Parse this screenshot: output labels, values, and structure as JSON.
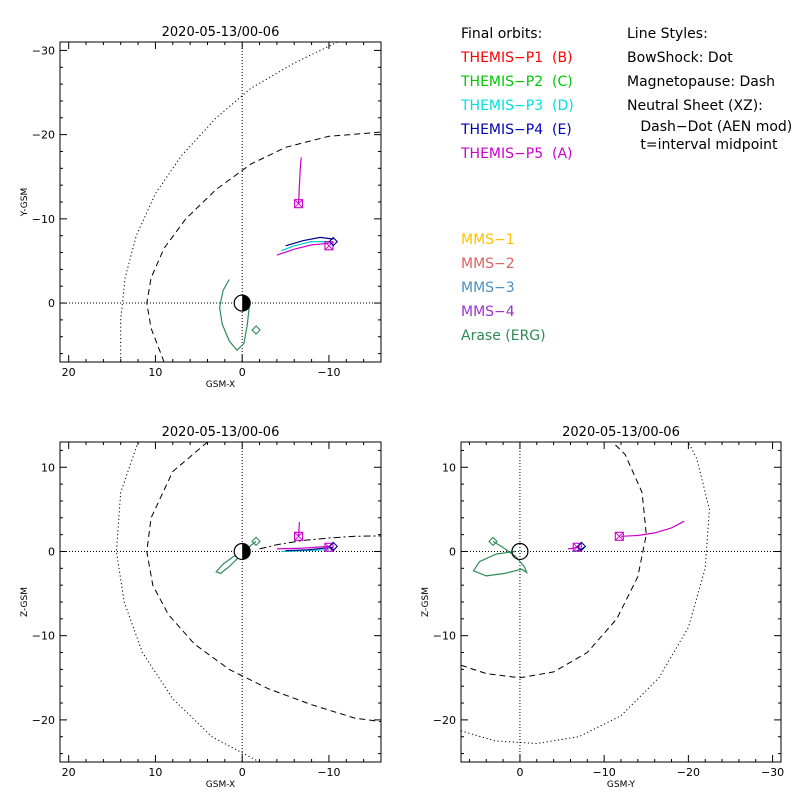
{
  "chart_data": [
    {
      "type": "line",
      "id": "xy",
      "title": "2020-05-13/00-06",
      "xlabel": "GSM-X",
      "ylabel": "Y-GSM",
      "xlim": [
        21,
        -16
      ],
      "ylim": [
        7,
        -31
      ],
      "xticks": [
        20,
        10,
        0,
        -10
      ],
      "xtick_labels": [
        "20",
        "10",
        "0",
        "−10"
      ],
      "yticks": [
        -30,
        -20,
        -10,
        0
      ],
      "ytick_labels": [
        "−30",
        "−20",
        "−10",
        "0"
      ],
      "grid": false,
      "series": [
        {
          "color": "#000000",
          "style": "dotted",
          "points": [
            [
              14,
              7
            ],
            [
              14,
              2
            ],
            [
              13.5,
              -3
            ],
            [
              12.2,
              -8
            ],
            [
              10,
              -13
            ],
            [
              7,
              -17.5
            ],
            [
              3,
              -22
            ],
            [
              -1,
              -25.5
            ],
            [
              -6,
              -28.5
            ],
            [
              -11,
              -31
            ]
          ]
        },
        {
          "color": "#000000",
          "style": "dashed",
          "points": [
            [
              9,
              7
            ],
            [
              10.5,
              3
            ],
            [
              11,
              0
            ],
            [
              10.5,
              -3
            ],
            [
              9,
              -6.5
            ],
            [
              6.5,
              -10
            ],
            [
              3,
              -13.5
            ],
            [
              -1,
              -16.5
            ],
            [
              -5,
              -18.5
            ],
            [
              -10,
              -19.8
            ],
            [
              -16,
              -20.3
            ]
          ]
        },
        {
          "color": "#cc00cc",
          "style": "solid",
          "points": [
            [
              -6.5,
              -11.8
            ],
            [
              -6.6,
              -14
            ],
            [
              -6.7,
              -16
            ],
            [
              -6.8,
              -17.3
            ]
          ]
        },
        {
          "color": "#00cccc",
          "style": "solid",
          "points": [
            [
              -4.5,
              -6.2
            ],
            [
              -6,
              -6.8
            ],
            [
              -8,
              -7.3
            ],
            [
              -10,
              -7.3
            ]
          ]
        },
        {
          "color": "#00008b",
          "style": "solid",
          "points": [
            [
              -5,
              -6.8
            ],
            [
              -7,
              -7.4
            ],
            [
              -9,
              -7.8
            ],
            [
              -10.5,
              -7.6
            ]
          ]
        },
        {
          "color": "#cc00cc",
          "style": "solid",
          "points": [
            [
              -4,
              -5.7
            ],
            [
              -6,
              -6.4
            ],
            [
              -8,
              -6.9
            ],
            [
              -10,
              -7.1
            ]
          ]
        },
        {
          "color": "#2e8b57",
          "style": "solid",
          "points": [
            [
              1.5,
              -2.8
            ],
            [
              2.2,
              -1.5
            ],
            [
              2.6,
              0.5
            ],
            [
              2.3,
              2.5
            ],
            [
              1.5,
              4.5
            ],
            [
              0.6,
              5.6
            ],
            [
              -0.2,
              4.8
            ],
            [
              -0.6,
              2.5
            ],
            [
              -0.8,
              0.5
            ],
            [
              -0.6,
              -0.4
            ],
            [
              0,
              -0.6
            ],
            [
              0.5,
              0.1
            ]
          ]
        }
      ],
      "markers": [
        {
          "shape": "square-x",
          "x": -6.5,
          "y": -11.8,
          "color": "#cc00cc"
        },
        {
          "shape": "square-x",
          "x": -10,
          "y": -6.8,
          "color": "#cc00cc"
        },
        {
          "shape": "diamond",
          "x": -10.5,
          "y": -7.3,
          "color": "#00008b"
        },
        {
          "shape": "diamond",
          "x": -1.6,
          "y": 3.2,
          "color": "#2e8b57"
        },
        {
          "shape": "earth",
          "x": 0,
          "y": 0
        }
      ]
    },
    {
      "type": "line",
      "id": "xz",
      "title": "2020-05-13/00-06",
      "xlabel": "GSM-X",
      "ylabel": "Z-GSM",
      "xlim": [
        21,
        -16
      ],
      "ylim": [
        -25,
        13
      ],
      "xticks": [
        20,
        10,
        0,
        -10
      ],
      "xtick_labels": [
        "20",
        "10",
        "0",
        "−10"
      ],
      "yticks": [
        10,
        0,
        -10,
        -20
      ],
      "ytick_labels": [
        "10",
        "0",
        "−10",
        "−20"
      ],
      "grid": false,
      "series": [
        {
          "color": "#000000",
          "style": "dotted",
          "points": [
            [
              12,
              13
            ],
            [
              14,
              7
            ],
            [
              14.5,
              0
            ],
            [
              13.6,
              -6
            ],
            [
              11.5,
              -12
            ],
            [
              8,
              -17.5
            ],
            [
              3.5,
              -22
            ],
            [
              -2,
              -25
            ]
          ]
        },
        {
          "color": "#000000",
          "style": "dashed",
          "points": [
            [
              4,
              13
            ],
            [
              8,
              9.5
            ],
            [
              10.5,
              4
            ],
            [
              11,
              0
            ],
            [
              10.3,
              -4
            ],
            [
              8.5,
              -7.5
            ],
            [
              5.5,
              -11
            ],
            [
              1.5,
              -14
            ],
            [
              -3,
              -16.3
            ],
            [
              -8,
              -18.2
            ],
            [
              -13,
              -19.8
            ],
            [
              -16,
              -20.2
            ]
          ]
        },
        {
          "color": "#000000",
          "style": "dashdot",
          "points": [
            [
              -2,
              0.3
            ],
            [
              -4,
              0.8
            ],
            [
              -7,
              1.3
            ],
            [
              -10,
              1.6
            ],
            [
              -13,
              1.8
            ],
            [
              -16,
              1.85
            ]
          ]
        },
        {
          "color": "#cc00cc",
          "style": "solid",
          "points": [
            [
              -6.5,
              1.8
            ],
            [
              -6.6,
              3.5
            ]
          ]
        },
        {
          "color": "#00cccc",
          "style": "solid",
          "points": [
            [
              -4.5,
              0
            ],
            [
              -7,
              0.1
            ],
            [
              -10,
              0.2
            ]
          ]
        },
        {
          "color": "#00008b",
          "style": "solid",
          "points": [
            [
              -5,
              0.1
            ],
            [
              -7.5,
              0.2
            ],
            [
              -10.5,
              0.5
            ]
          ]
        },
        {
          "color": "#cc00cc",
          "style": "solid",
          "points": [
            [
              -4,
              0.3
            ],
            [
              -7,
              0.4
            ],
            [
              -10,
              0.6
            ]
          ]
        },
        {
          "color": "#2e8b57",
          "style": "solid",
          "points": [
            [
              -1.6,
              1.2
            ],
            [
              -0.5,
              0.3
            ],
            [
              0.5,
              -0.8
            ],
            [
              1.5,
              -1.8
            ],
            [
              2.5,
              -2.6
            ],
            [
              3,
              -2.4
            ],
            [
              2.2,
              -1.5
            ],
            [
              1,
              -0.6
            ],
            [
              0,
              -0.1
            ]
          ]
        }
      ],
      "markers": [
        {
          "shape": "square-x",
          "x": -6.5,
          "y": 1.8,
          "color": "#cc00cc"
        },
        {
          "shape": "square-x",
          "x": -10,
          "y": 0.5,
          "color": "#cc00cc"
        },
        {
          "shape": "diamond",
          "x": -10.5,
          "y": 0.6,
          "color": "#00008b"
        },
        {
          "shape": "diamond",
          "x": -1.6,
          "y": 1.2,
          "color": "#2e8b57"
        },
        {
          "shape": "earth",
          "x": 0,
          "y": 0
        }
      ]
    },
    {
      "type": "line",
      "id": "yz",
      "title": "2020-05-13/00-06",
      "xlabel": "GSM-Y",
      "ylabel": "Z-GSM",
      "xlim": [
        7,
        -31
      ],
      "ylim": [
        -25,
        13
      ],
      "xticks": [
        0,
        -10,
        -20,
        -30
      ],
      "xtick_labels": [
        "0",
        "−10",
        "−20",
        "−30"
      ],
      "yticks": [
        10,
        0,
        -10,
        -20
      ],
      "ytick_labels": [
        "10",
        "0",
        "−10",
        "−20"
      ],
      "grid": false,
      "series": [
        {
          "color": "#000000",
          "style": "dotted",
          "points": [
            [
              7,
              -21.3
            ],
            [
              3,
              -22.5
            ],
            [
              -2,
              -22.8
            ],
            [
              -7,
              -22
            ],
            [
              -12,
              -19.5
            ],
            [
              -16.5,
              -15
            ],
            [
              -20,
              -9
            ],
            [
              -22,
              -2
            ],
            [
              -22.5,
              5
            ],
            [
              -21,
              11
            ],
            [
              -20,
              13
            ]
          ]
        },
        {
          "color": "#000000",
          "style": "dashed",
          "points": [
            [
              7,
              -13.5
            ],
            [
              4,
              -14.5
            ],
            [
              0,
              -15
            ],
            [
              -4,
              -14.3
            ],
            [
              -8,
              -12
            ],
            [
              -11.5,
              -8
            ],
            [
              -14,
              -3
            ],
            [
              -15,
              2
            ],
            [
              -14.5,
              7
            ],
            [
              -12.5,
              11.5
            ],
            [
              -11,
              13
            ]
          ]
        },
        {
          "color": "#cc00cc",
          "style": "solid",
          "points": [
            [
              -12,
              1.8
            ],
            [
              -14,
              1.9
            ],
            [
              -16,
              2.2
            ],
            [
              -18,
              2.8
            ],
            [
              -19.5,
              3.6
            ]
          ]
        },
        {
          "color": "#00cccc",
          "style": "solid",
          "points": [
            [
              -6.2,
              0
            ],
            [
              -6.8,
              0.1
            ],
            [
              -7.3,
              0.2
            ]
          ]
        },
        {
          "color": "#00008b",
          "style": "solid",
          "points": [
            [
              -6.8,
              0.1
            ],
            [
              -7.4,
              0.3
            ],
            [
              -7.6,
              0.5
            ]
          ]
        },
        {
          "color": "#cc00cc",
          "style": "solid",
          "points": [
            [
              -5.7,
              0.3
            ],
            [
              -6.4,
              0.4
            ],
            [
              -7.1,
              0.6
            ]
          ]
        },
        {
          "color": "#2e8b57",
          "style": "solid",
          "points": [
            [
              3.2,
              1.2
            ],
            [
              2.2,
              0.6
            ],
            [
              0.5,
              -0.6
            ],
            [
              -0.5,
              -1.8
            ],
            [
              -0.8,
              -2.5
            ],
            [
              -0.2,
              -2.1
            ],
            [
              1.8,
              -2.6
            ],
            [
              4,
              -2.9
            ],
            [
              5.5,
              -2.3
            ],
            [
              4.8,
              -1.2
            ],
            [
              2.8,
              -0.3
            ],
            [
              0.6,
              0
            ]
          ]
        }
      ],
      "markers": [
        {
          "shape": "square-x",
          "x": -11.8,
          "y": 1.8,
          "color": "#cc00cc"
        },
        {
          "shape": "square-x",
          "x": -6.8,
          "y": 0.5,
          "color": "#cc00cc"
        },
        {
          "shape": "diamond",
          "x": -7.3,
          "y": 0.6,
          "color": "#00008b"
        },
        {
          "shape": "diamond",
          "x": 3.2,
          "y": 1.2,
          "color": "#2e8b57"
        },
        {
          "shape": "circle",
          "x": 0,
          "y": 0
        }
      ]
    }
  ],
  "legend": {
    "orbits_title": "Final orbits:",
    "orbits": [
      {
        "label": "THEMIS−P1  (B)",
        "color": "#ff0000"
      },
      {
        "label": "THEMIS−P2  (C)",
        "color": "#00c800"
      },
      {
        "label": "THEMIS−P3  (D)",
        "color": "#00e0e0"
      },
      {
        "label": "THEMIS−P4  (E)",
        "color": "#0000b4"
      },
      {
        "label": "THEMIS−P5  (A)",
        "color": "#cc00cc"
      }
    ],
    "mms": [
      {
        "label": "MMS−1",
        "color": "#ffc000"
      },
      {
        "label": "MMS−2",
        "color": "#e06060"
      },
      {
        "label": "MMS−3",
        "color": "#4a90c0"
      },
      {
        "label": "MMS−4",
        "color": "#9932cc"
      },
      {
        "label": "Arase (ERG)",
        "color": "#2e8b57"
      }
    ],
    "styles_title": "Line Styles:",
    "styles": [
      "BowShock: Dot",
      "Magnetopause: Dash",
      "Neutral Sheet (XZ):",
      "   Dash−Dot (AEN mod)",
      "   t=interval midpoint"
    ]
  }
}
